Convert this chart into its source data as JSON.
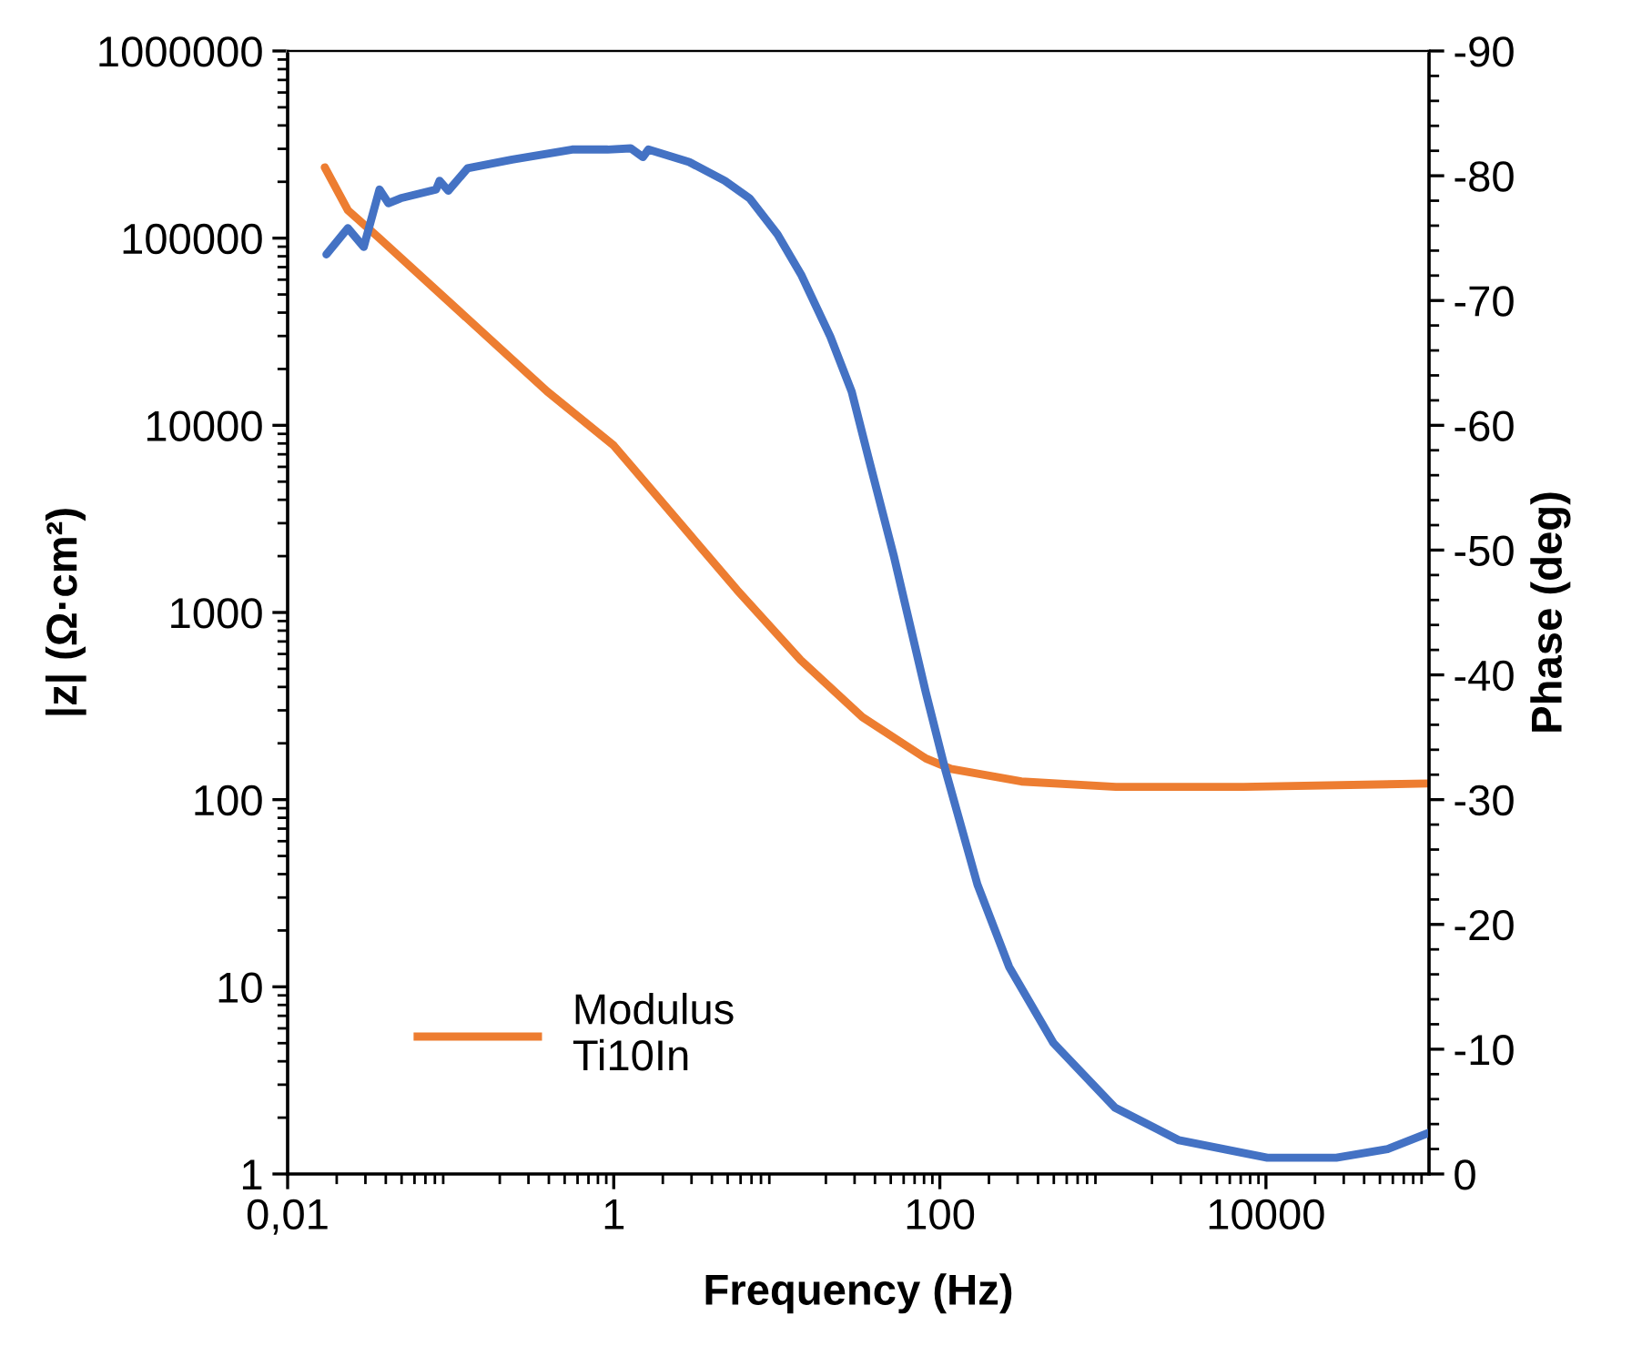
{
  "chart_data": {
    "type": "line",
    "xlabel": "Frequency (Hz)",
    "ylabel": "|z| (Ω·cm²)",
    "y2label": "Phase (deg)",
    "log": "xy",
    "xlim": [
      0.01,
      100000
    ],
    "xticks": [
      {
        "value": 0.01,
        "label": "0,01"
      },
      1,
      100,
      10000
    ],
    "ylim": [
      1,
      1000000
    ],
    "yticks": [
      1,
      10,
      100,
      1000,
      10000,
      100000,
      1000000
    ],
    "y2lim": [
      0,
      -90
    ],
    "y2ticks": [
      0,
      -10,
      -20,
      -30,
      -40,
      -50,
      -60,
      -70,
      -80,
      -90
    ],
    "grid": false,
    "legend": "bottom left",
    "marker": "none",
    "line_style": "solid",
    "series": [
      {
        "name": "Modulus\nTi10In",
        "color": "#ed7d31",
        "x": [
          0.0169,
          0.0234,
          0.036,
          0.39,
          1,
          5.7,
          14,
          33.5,
          82,
          117,
          316,
          1200,
          7300,
          100000
        ],
        "values": [
          239000,
          141000,
          101000,
          15200,
          7800,
          1320,
          557,
          276,
          166,
          146,
          125,
          117,
          117,
          122
        ]
      },
      {
        "color": "#4472c4",
        "axis": "y2",
        "x": [
          0.0173,
          0.0234,
          0.0293,
          0.0366,
          0.0415,
          0.0494,
          0.0814,
          0.0855,
          0.0967,
          0.127,
          0.238,
          0.556,
          0.92,
          1.27,
          1.51,
          1.63,
          2.9,
          4.8,
          6.8,
          10.1,
          14.2,
          21.3,
          28.8,
          37,
          52.5,
          82,
          108,
          170,
          266,
          497,
          1190,
          2930,
          10200,
          27000,
          55700,
          100000
        ],
        "values": [
          -73.7,
          -75.8,
          -74.3,
          -78.9,
          -77.8,
          -78.2,
          -78.9,
          -79.6,
          -78.8,
          -80.6,
          -81.3,
          -82.1,
          -82.1,
          -82.2,
          -81.5,
          -82.1,
          -81.1,
          -79.6,
          -78.2,
          -75.3,
          -72.0,
          -67.1,
          -62.7,
          -57.1,
          -49.4,
          -38.6,
          -32.4,
          -23.2,
          -16.6,
          -10.5,
          -5.3,
          -2.7,
          -1.3,
          -1.3,
          -2.0,
          -3.3
        ]
      }
    ]
  }
}
